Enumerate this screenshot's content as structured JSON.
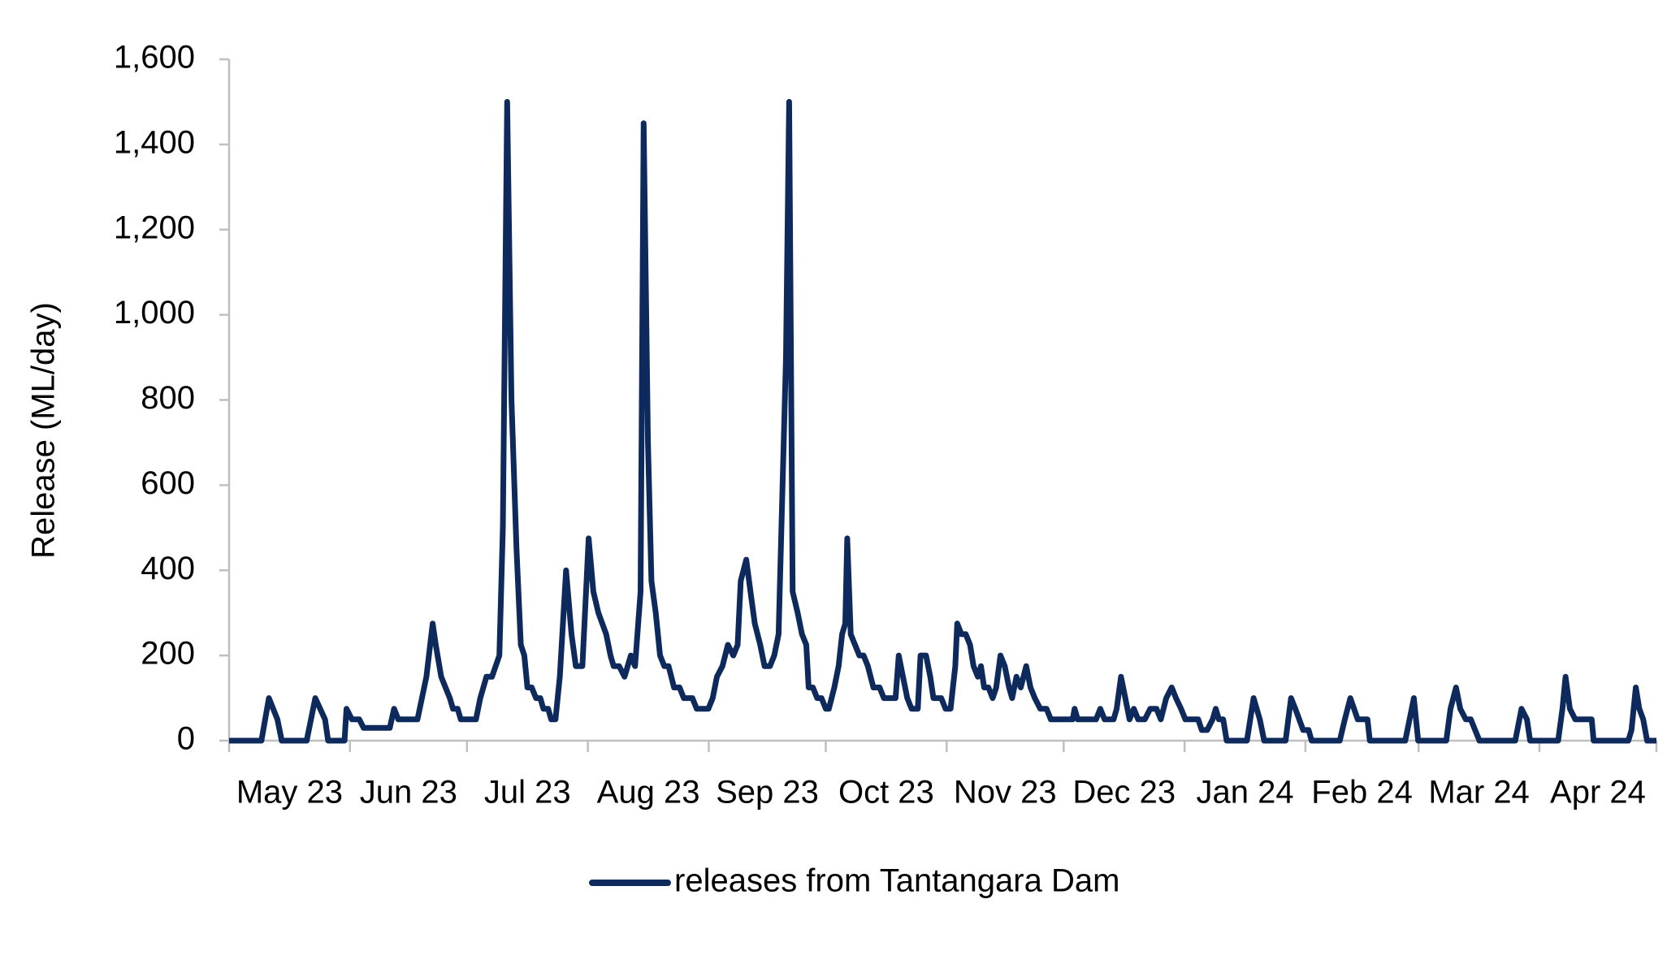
{
  "chart_data": {
    "type": "line",
    "y_axis_label": "Release (ML/day)",
    "xlim": [
      0,
      366
    ],
    "xticks": [
      {
        "value": 0,
        "label": "May 23"
      },
      {
        "value": 31,
        "label": "Jun 23"
      },
      {
        "value": 61,
        "label": "Jul 23"
      },
      {
        "value": 92,
        "label": "Aug 23"
      },
      {
        "value": 123,
        "label": "Sep 23"
      },
      {
        "value": 153,
        "label": "Oct 23"
      },
      {
        "value": 184,
        "label": "Nov 23"
      },
      {
        "value": 214,
        "label": "Dec 23"
      },
      {
        "value": 245,
        "label": "Jan 24"
      },
      {
        "value": 276,
        "label": "Feb 24"
      },
      {
        "value": 305,
        "label": "Mar 24"
      },
      {
        "value": 336,
        "label": "Apr 24"
      }
    ],
    "ylim": [
      0,
      1600
    ],
    "yticks": [
      0,
      200,
      400,
      600,
      800,
      1000,
      1200,
      {
        "value": 1000,
        "label": "1,000"
      },
      {
        "value": 1200,
        "label": "1,200"
      },
      {
        "value": 1400,
        "label": "1,400"
      },
      {
        "value": 1600,
        "label": "1,600"
      }
    ],
    "x": [
      0,
      8.3,
      10.2,
      12.4,
      13.5,
      19.9,
      22.1,
      24.6,
      25.4,
      29.6,
      30.1,
      31.5,
      33.4,
      34.5,
      41.2,
      42.3,
      43.4,
      48.3,
      50.6,
      52.2,
      53,
      54.4,
      56.6,
      57.4,
      58.6,
      59.4,
      63.3,
      64.4,
      66,
      67.4,
      69.3,
      70.2,
      71.3,
      72.4,
      73.7,
      74.8,
      75.7,
      76.5,
      77.6,
      78.7,
      79.8,
      80.6,
      81.8,
      82.6,
      83.7,
      84.8,
      86.4,
      87.8,
      88.9,
      90.6,
      92.2,
      93.4,
      94.7,
      96.7,
      97.8,
      98.6,
      100,
      101.4,
      103,
      104.1,
      105.5,
      106.3,
      107.4,
      108.3,
      109.4,
      110.5,
      111.6,
      112.7,
      114.1,
      115.5,
      116.6,
      118.8,
      119.9,
      122.9,
      124,
      125.1,
      126.5,
      127.9,
      129.3,
      130.4,
      131.2,
      132.6,
      133.7,
      134.8,
      136.2,
      137.3,
      138.7,
      139.8,
      140.9,
      142.8,
      143.6,
      144.5,
      145.8,
      146.9,
      148,
      148.6,
      149.7,
      150.8,
      151.9,
      153,
      153.8,
      155.2,
      156.3,
      157.2,
      158,
      158.5,
      159.4,
      160.5,
      161.6,
      162.7,
      163.8,
      165.2,
      166.8,
      167.9,
      170.9,
      171.7,
      172.8,
      173.9,
      175,
      176.6,
      177.3,
      178.7,
      179.8,
      180.6,
      182.6,
      183.7,
      185,
      186.2,
      186.7,
      187.8,
      188.9,
      190,
      190.9,
      192,
      192.8,
      193.6,
      194.7,
      195.8,
      196.7,
      197.8,
      198.9,
      200,
      200.8,
      201.9,
      203,
      204.4,
      205.5,
      206.6,
      208,
      209.6,
      210.7,
      216.3,
      216.8,
      217.6,
      222.3,
      223.4,
      224.5,
      226.8,
      227.6,
      228.7,
      229.8,
      230.9,
      232,
      233.1,
      234.8,
      236.2,
      237.8,
      238.9,
      240.3,
      241.7,
      242.8,
      244.1,
      245.2,
      248.5,
      249.4,
      250.8,
      252.2,
      253,
      253.8,
      254.9,
      255.8,
      261,
      262.7,
      264.3,
      265.4,
      270.9,
      272.3,
      273.4,
      275.4,
      276.8,
      277.6,
      284.8,
      286.1,
      287.5,
      289.4,
      291.9,
      292.5,
      301.6,
      302.7,
      303.8,
      304.9,
      312.1,
      313.2,
      314.6,
      315.7,
      317.1,
      318.4,
      319.5,
      320.6,
      329.8,
      331.4,
      332.8,
      333.6,
      340.8,
      341.9,
      342.7,
      343.8,
      345.2,
      349.4,
      349.9,
      358.8,
      359.6,
      360.7,
      361.6,
      362.6,
      363.6,
      366
    ],
    "series": [
      {
        "name": "releases from Tantangara Dam",
        "color": "#0e2a5c",
        "values": [
          0,
          0,
          100,
          50,
          0,
          0,
          100,
          50,
          0,
          0,
          75,
          50,
          50,
          30,
          30,
          75,
          50,
          50,
          150,
          275,
          225,
          150,
          100,
          75,
          75,
          50,
          50,
          100,
          150,
          150,
          200,
          500,
          1500,
          800,
          450,
          225,
          200,
          125,
          125,
          100,
          100,
          75,
          75,
          50,
          50,
          150,
          400,
          250,
          175,
          175,
          475,
          350,
          300,
          250,
          200,
          175,
          175,
          150,
          200,
          175,
          350,
          1450,
          700,
          375,
          300,
          200,
          175,
          175,
          125,
          125,
          100,
          100,
          75,
          75,
          100,
          150,
          175,
          225,
          200,
          225,
          375,
          425,
          350,
          275,
          225,
          175,
          175,
          200,
          250,
          900,
          1500,
          350,
          300,
          250,
          225,
          125,
          125,
          100,
          100,
          75,
          75,
          125,
          175,
          250,
          275,
          475,
          250,
          225,
          200,
          200,
          175,
          125,
          125,
          100,
          100,
          200,
          150,
          100,
          75,
          75,
          200,
          200,
          150,
          100,
          100,
          75,
          75,
          175,
          275,
          250,
          250,
          225,
          175,
          150,
          175,
          125,
          125,
          100,
          125,
          200,
          175,
          125,
          100,
          150,
          125,
          175,
          125,
          100,
          75,
          75,
          50,
          50,
          75,
          50,
          50,
          75,
          50,
          50,
          75,
          150,
          100,
          50,
          75,
          50,
          50,
          75,
          75,
          50,
          100,
          125,
          100,
          75,
          50,
          50,
          25,
          25,
          50,
          75,
          50,
          50,
          0,
          0,
          100,
          50,
          0,
          0,
          100,
          75,
          25,
          25,
          0,
          0,
          50,
          100,
          50,
          50,
          0,
          0,
          50,
          100,
          0,
          0,
          75,
          125,
          75,
          50,
          50,
          25,
          0,
          0,
          75,
          50,
          0,
          0,
          75,
          150,
          75,
          50,
          50,
          0,
          0,
          25,
          125,
          75,
          50,
          0,
          0
        ]
      }
    ]
  }
}
